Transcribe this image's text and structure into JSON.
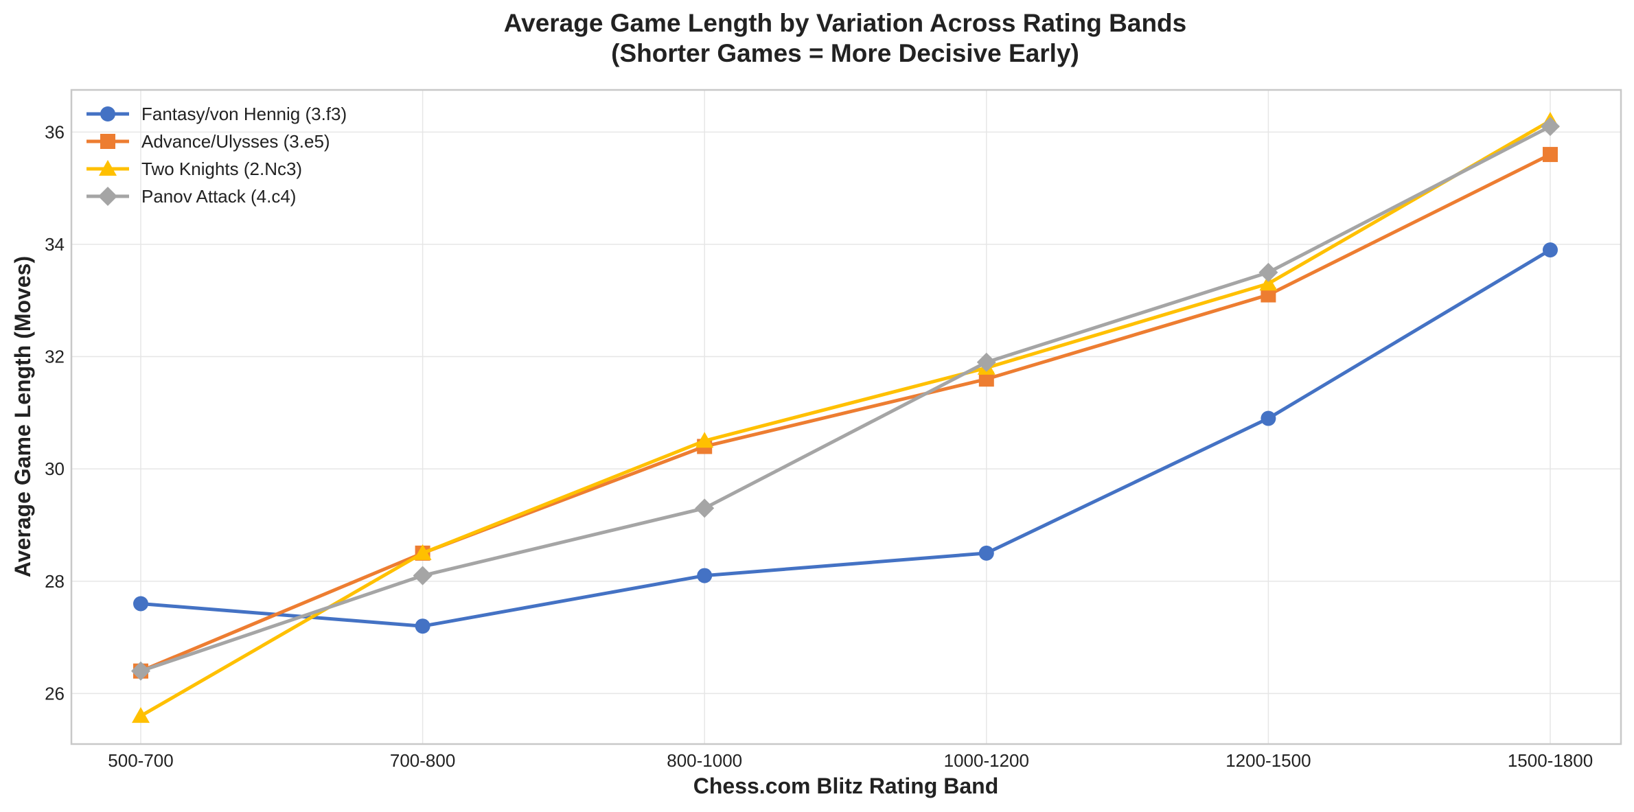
{
  "chart_data": {
    "type": "line",
    "title": "Average Game Length by Variation Across Rating Bands",
    "subtitle": "(Shorter Games = More Decisive Early)",
    "xlabel": "Chess.com Blitz Rating Band",
    "ylabel": "Average Game Length (Moves)",
    "categories": [
      "500-700",
      "700-800",
      "800-1000",
      "1000-1200",
      "1200-1500",
      "1500-1800"
    ],
    "ylim": [
      25.1,
      36.75
    ],
    "yticks": [
      26,
      28,
      30,
      32,
      34,
      36
    ],
    "grid": true,
    "legend_position": "top-left",
    "series": [
      {
        "name": "Fantasy/von Hennig (3.f3)",
        "color": "#4472C4",
        "marker": "circle",
        "values": [
          27.6,
          27.2,
          28.1,
          28.5,
          30.9,
          33.9
        ]
      },
      {
        "name": "Advance/Ulysses (3.e5)",
        "color": "#ED7D31",
        "marker": "square",
        "values": [
          26.4,
          28.5,
          30.4,
          31.6,
          33.1,
          35.6
        ]
      },
      {
        "name": "Two Knights (2.Nc3)",
        "color": "#FFC000",
        "marker": "triangle",
        "values": [
          25.6,
          28.5,
          30.5,
          31.8,
          33.3,
          36.2
        ]
      },
      {
        "name": "Panov Attack (4.c4)",
        "color": "#A5A5A5",
        "marker": "diamond",
        "values": [
          26.4,
          28.1,
          29.3,
          31.9,
          33.5,
          36.1
        ]
      }
    ]
  }
}
